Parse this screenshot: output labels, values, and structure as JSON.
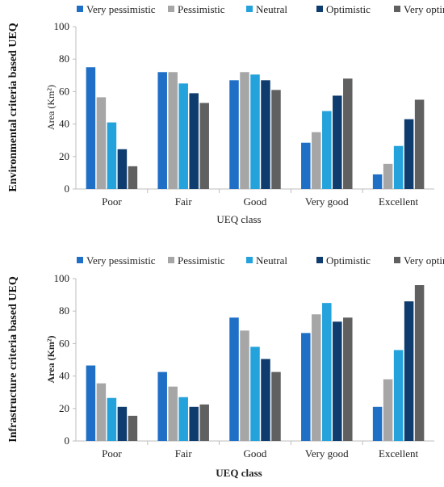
{
  "chart_data": [
    {
      "type": "bar",
      "categories": [
        "Poor",
        "Fair",
        "Good",
        "Very good",
        "Excellent"
      ],
      "series": [
        {
          "name": "Very pessimistic",
          "color": "#1f6fc6",
          "values": [
            75,
            72,
            67,
            28.5,
            9
          ]
        },
        {
          "name": "Pessimistic",
          "color": "#a6a6a6",
          "values": [
            56.5,
            72,
            72,
            35,
            15.5
          ]
        },
        {
          "name": "Neutral",
          "color": "#24a2dc",
          "values": [
            41,
            65,
            70.5,
            48,
            26.5
          ]
        },
        {
          "name": "Optimistic",
          "color": "#0f3c6e",
          "values": [
            24.5,
            59,
            67,
            57.5,
            43
          ]
        },
        {
          "name": "Very optimistic",
          "color": "#606060",
          "values": [
            14,
            53,
            61,
            68,
            55
          ]
        }
      ],
      "yticks": [
        0,
        20,
        40,
        60,
        80,
        100
      ],
      "ylim": [
        0,
        100
      ],
      "xlabel": "UEQ class",
      "ylabel": "Area (Km²)",
      "side_title": "Environmental criteria based UEQ",
      "legend_position": "top",
      "grid": false
    },
    {
      "type": "bar",
      "categories": [
        "Poor",
        "Fair",
        "Good",
        "Very good",
        "Excellent"
      ],
      "series": [
        {
          "name": "Very pessimistic",
          "color": "#1f6fc6",
          "values": [
            46.5,
            42.5,
            76,
            66.5,
            21
          ]
        },
        {
          "name": "Pessimistic",
          "color": "#a6a6a6",
          "values": [
            35.5,
            33.5,
            68,
            78,
            38
          ]
        },
        {
          "name": "Neutral",
          "color": "#24a2dc",
          "values": [
            26.5,
            27,
            58,
            85,
            56
          ]
        },
        {
          "name": "Optimistic",
          "color": "#0f3c6e",
          "values": [
            21,
            21,
            50.5,
            73.5,
            86
          ]
        },
        {
          "name": "Very optimistic",
          "color": "#606060",
          "values": [
            15.5,
            22.5,
            42.5,
            76,
            96
          ]
        }
      ],
      "yticks": [
        0,
        20,
        40,
        60,
        80,
        100
      ],
      "ylim": [
        0,
        100
      ],
      "xlabel": "UEQ class",
      "ylabel": "Area (Km²)",
      "side_title": "Infrastructure criteria based UEQ",
      "legend_position": "top",
      "grid": false
    }
  ]
}
